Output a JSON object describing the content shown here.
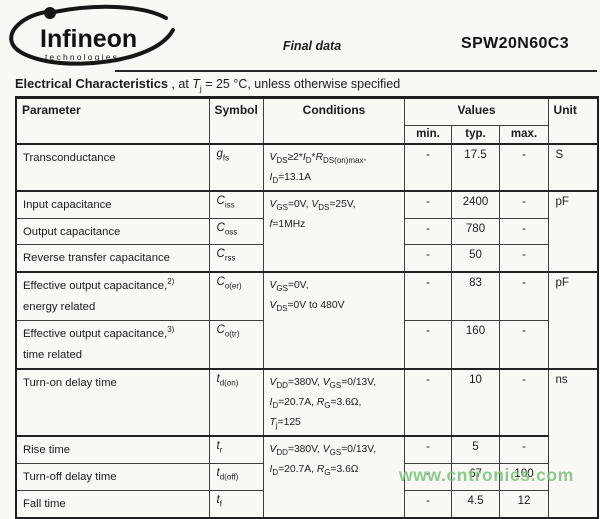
{
  "header": {
    "brand": "Infineon",
    "brand_sub": "technologies",
    "doc_type": "Final data",
    "part_number": "SPW20N60C3"
  },
  "section_title": {
    "bold": "Electrical Characteristics",
    "rest": " , at `T`~j~ = 25 °C, unless otherwise specified"
  },
  "table": {
    "headers": {
      "parameter": "Parameter",
      "symbol": "Symbol",
      "conditions": "Conditions",
      "values": "Values",
      "min": "min.",
      "typ": "typ.",
      "max": "max.",
      "unit": "Unit"
    },
    "rows": [
      {
        "param": "Transconductance",
        "symbol": "`g`~fs~",
        "cond": "`V`~DS~≥2*`I`~D~*`R`~DS(on)max~,\n`I`~D~=13.1A",
        "min": "-",
        "typ": "17.5",
        "max": "-",
        "unit": "S"
      },
      {
        "param": "Input capacitance",
        "symbol": "`C`~iss~",
        "cond": "`V`~GS~=0V, `V`~DS~=25V,\n`f`=1MHz",
        "min": "-",
        "typ": "2400",
        "max": "-",
        "unit": "pF"
      },
      {
        "param": "Output capacitance",
        "symbol": "`C`~oss~",
        "min": "-",
        "typ": "780",
        "max": "-"
      },
      {
        "param": "Reverse transfer capacitance",
        "symbol": "`C`~rss~",
        "min": "-",
        "typ": "50",
        "max": "-"
      },
      {
        "param": "Effective output capacitance,^2)^\nenergy related",
        "symbol": "`C`~o(er)~",
        "cond": "`V`~GS~=0V,\n`V`~DS~=0V to 480V",
        "min": "-",
        "typ": "83",
        "max": "-",
        "unit": "pF"
      },
      {
        "param": "Effective output capacitance,^3)^\ntime related",
        "symbol": "`C`~o(tr)~",
        "min": "-",
        "typ": "160",
        "max": "-"
      },
      {
        "param": "Turn-on delay time",
        "symbol": "`t`~d(on)~",
        "cond": "`V`~DD~=380V, `V`~GS~=0/13V,\n`I`~D~=20.7A, `R`~G~=3.6Ω,\n`T`~j~=125",
        "min": "-",
        "typ": "10",
        "max": "-",
        "unit": "ns"
      },
      {
        "param": "Rise time",
        "symbol": "`t`~r~",
        "cond": "`V`~DD~=380V, `V`~GS~=0/13V,\n`I`~D~=20.7A, `R`~G~=3.6Ω",
        "min": "-",
        "typ": "5",
        "max": "-"
      },
      {
        "param": "Turn-off delay time",
        "symbol": "`t`~d(off)~",
        "min": "-",
        "typ": "67",
        "max": "100"
      },
      {
        "param": "Fall time",
        "symbol": "`t`~f~",
        "min": "-",
        "typ": "4.5",
        "max": "12"
      }
    ]
  },
  "watermark": "www.cntronics.com"
}
